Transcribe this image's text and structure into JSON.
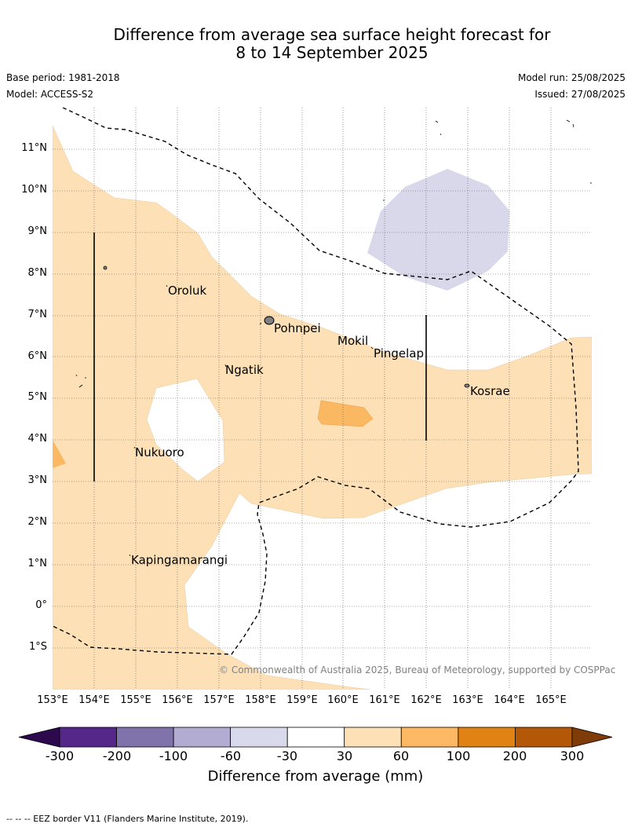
{
  "header": {
    "title_line1": "Difference from average sea surface height forecast for",
    "title_line2": "8 to 14 September 2025",
    "base_period": "Base period: 1981-2018",
    "model": "Model: ACCESS-S2",
    "model_run": "Model run: 25/08/2025",
    "issued": "Issued: 27/08/2025"
  },
  "map": {
    "lat_labels": [
      "11°N",
      "10°N",
      "9°N",
      "8°N",
      "7°N",
      "6°N",
      "5°N",
      "4°N",
      "3°N",
      "2°N",
      "1°N",
      "0°",
      "1°S"
    ],
    "lon_labels": [
      "153°E",
      "154°E",
      "155°E",
      "156°E",
      "157°E",
      "158°E",
      "159°E",
      "160°E",
      "161°E",
      "162°E",
      "163°E",
      "164°E",
      "165°E"
    ],
    "places": [
      "Oroluk",
      "Pohnpei",
      "Mokil",
      "Pingelap",
      "Ngatik",
      "Kosrae",
      "Nukuoro",
      "Kapingamarangi"
    ],
    "copyright": "© Commonwealth of Australia 2025, Bureau of Meteorology, supported by COSPPac",
    "colors": {
      "light_orange": "#fde0b6",
      "medium_orange": "#fbb863",
      "light_purple": "#d8d8ea",
      "eez_border": "#000000",
      "gridline": "#555555"
    }
  },
  "colorbar": {
    "title": "Difference from average (mm)",
    "labels": [
      "-300",
      "-200",
      "-100",
      "-60",
      "-30",
      "30",
      "60",
      "100",
      "200",
      "300"
    ],
    "colors": [
      "#2d0a4e",
      "#542788",
      "#8073ac",
      "#b2abd2",
      "#d8daeb",
      "#ffffff",
      "#fee0b6",
      "#fdb863",
      "#e08214",
      "#b35806",
      "#7f3b08"
    ]
  },
  "footnote": "-- -- -- EEZ border V11 (Flanders Marine Institute, 2019)."
}
